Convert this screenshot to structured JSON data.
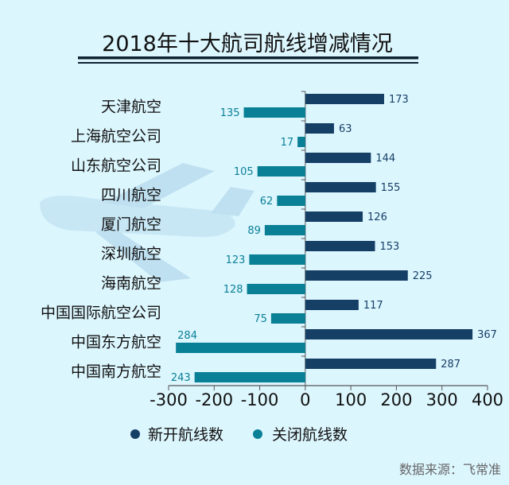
{
  "chart_data": {
    "type": "bar",
    "orientation": "horizontal",
    "title": "2018年十大航司航线增减情况",
    "categories": [
      "天津航空",
      "上海航空公司",
      "山东航空公司",
      "四川航空",
      "厦门航空",
      "深圳航空",
      "海南航空",
      "中国国际航空公司",
      "中国东方航空",
      "中国南方航空"
    ],
    "series": [
      {
        "name": "新开航线数",
        "values": [
          173,
          63,
          144,
          155,
          126,
          153,
          225,
          117,
          367,
          287
        ],
        "color": "#163f66"
      },
      {
        "name": "关闭航线数",
        "values": [
          135,
          17,
          105,
          62,
          89,
          123,
          128,
          75,
          284,
          243
        ],
        "color": "#0a8096",
        "plotted_as_negative": true
      }
    ],
    "xlim": [
      -300,
      400
    ],
    "xticks": [
      "-300",
      "-200",
      "-100",
      "0",
      "100",
      "200",
      "300",
      "400"
    ],
    "grid": false,
    "legend": "bottom",
    "source": "数据来源：飞常准"
  }
}
